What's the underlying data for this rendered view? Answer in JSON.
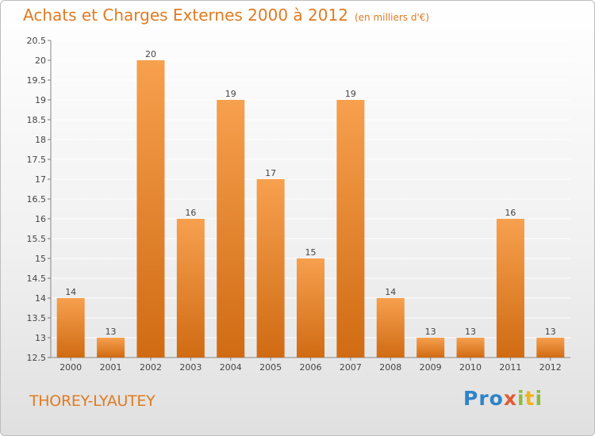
{
  "chart_data": {
    "type": "bar",
    "title": "Achats et Charges Externes 2000 à 2012",
    "subtitle": "(en milliers d'€)",
    "categories": [
      "2000",
      "2001",
      "2002",
      "2003",
      "2004",
      "2005",
      "2006",
      "2007",
      "2008",
      "2009",
      "2010",
      "2011",
      "2012"
    ],
    "values": [
      14,
      13,
      20,
      16,
      19,
      17,
      15,
      19,
      14,
      13,
      13,
      16,
      13
    ],
    "data_labels": [
      "14",
      "13",
      "20",
      "16",
      "19",
      "17",
      "15",
      "19",
      "14",
      "13",
      "13",
      "16",
      "13"
    ],
    "ylim": [
      12.5,
      20.5
    ],
    "yticks": [
      12.5,
      13,
      13.5,
      14,
      14.5,
      15,
      15.5,
      16,
      16.5,
      17,
      17.5,
      18,
      18.5,
      19,
      19.5,
      20,
      20.5
    ],
    "ytick_labels": [
      "12.5",
      "13",
      "13.5",
      "14",
      "14.5",
      "15",
      "15.5",
      "16",
      "16.5",
      "17",
      "17.5",
      "18",
      "18.5",
      "19",
      "19.5",
      "20",
      "20.5"
    ],
    "grid": true,
    "xlabel": "",
    "ylabel": "",
    "bar_color_top": "#f7a04e",
    "bar_color_bottom": "#d06b13",
    "grid_color": "#ffffff"
  },
  "place_name": "THOREY-LYAUTEY",
  "logo": {
    "p1": "Pro",
    "p2": "x",
    "p3": "i",
    "p4": "t",
    "p5": "i"
  }
}
